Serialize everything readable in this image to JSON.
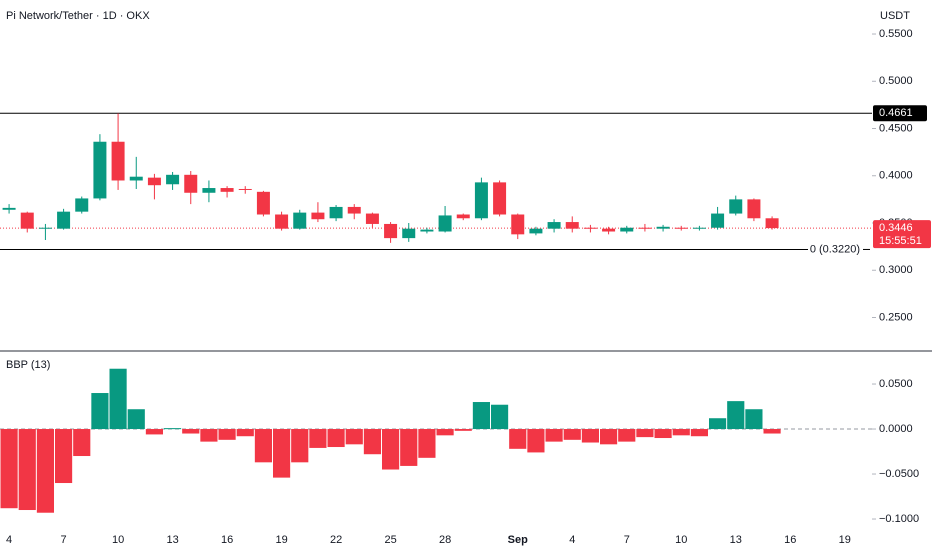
{
  "chart_data": [
    {
      "type": "candlestick",
      "title": "Pi Network/Tether · 1D · OKX",
      "y_label": "USDT",
      "categories": [
        "4",
        null,
        null,
        "7",
        null,
        null,
        "10",
        null,
        null,
        "13",
        null,
        null,
        "16",
        null,
        null,
        "19",
        null,
        null,
        "22",
        null,
        null,
        "25",
        null,
        null,
        "28",
        null,
        null,
        null,
        "Sep",
        null,
        null,
        "4",
        null,
        null,
        "7",
        null,
        null,
        "10",
        null,
        null,
        "13",
        null,
        null,
        "16",
        null,
        null,
        "19",
        null
      ],
      "open": [
        0.364,
        0.361,
        0.344,
        0.344,
        0.362,
        0.376,
        0.436,
        0.395,
        0.398,
        0.391,
        0.401,
        0.382,
        0.387,
        0.386,
        0.383,
        0.359,
        0.344,
        0.361,
        0.355,
        0.367,
        0.36,
        0.349,
        0.334,
        0.341,
        0.341,
        0.359,
        0.355,
        0.393,
        0.359,
        0.339,
        0.344,
        0.351,
        0.345,
        0.344,
        0.341,
        0.345,
        0.344,
        0.345,
        0.344,
        0.345,
        0.36,
        0.375,
        0.355,
        null,
        null,
        null,
        null,
        null
      ],
      "high": [
        0.37,
        0.362,
        0.349,
        0.365,
        0.378,
        0.444,
        0.466,
        0.42,
        0.402,
        0.404,
        0.405,
        0.395,
        0.389,
        0.389,
        0.384,
        0.362,
        0.364,
        0.372,
        0.369,
        0.37,
        0.361,
        0.351,
        0.35,
        0.345,
        0.368,
        0.36,
        0.398,
        0.395,
        0.36,
        0.346,
        0.354,
        0.357,
        0.348,
        0.346,
        0.347,
        0.349,
        0.348,
        0.347,
        0.347,
        0.367,
        0.379,
        0.376,
        0.357,
        null,
        null,
        null,
        null,
        null
      ],
      "low": [
        0.36,
        0.34,
        0.332,
        0.343,
        0.36,
        0.374,
        0.385,
        0.386,
        0.375,
        0.385,
        0.37,
        0.372,
        0.377,
        0.381,
        0.357,
        0.342,
        0.343,
        0.351,
        0.352,
        0.354,
        0.345,
        0.329,
        0.33,
        0.339,
        0.34,
        0.353,
        0.353,
        0.357,
        0.333,
        0.337,
        0.34,
        0.34,
        0.34,
        0.338,
        0.339,
        0.341,
        0.341,
        0.342,
        0.342,
        0.343,
        0.358,
        0.352,
        0.343,
        null,
        null,
        null,
        null,
        null
      ],
      "close": [
        0.366,
        0.344,
        0.345,
        0.362,
        0.376,
        0.436,
        0.395,
        0.399,
        0.39,
        0.401,
        0.382,
        0.387,
        0.383,
        0.385,
        0.359,
        0.344,
        0.361,
        0.354,
        0.367,
        0.36,
        0.349,
        0.334,
        0.344,
        0.343,
        0.358,
        0.355,
        0.393,
        0.359,
        0.338,
        0.344,
        0.351,
        0.344,
        0.344,
        0.341,
        0.345,
        0.344,
        0.346,
        0.344,
        0.345,
        0.36,
        0.375,
        0.355,
        0.3446,
        null,
        null,
        null,
        null,
        null
      ],
      "up_color": "#089981",
      "down_color": "#f23645",
      "ylim": [
        0.2156,
        0.586
      ],
      "yticks": [
        {
          "value": 0.55,
          "label": "0.5500"
        },
        {
          "value": 0.5,
          "label": "0.5000"
        },
        {
          "value": 0.45,
          "label": "0.4500"
        },
        {
          "value": 0.4,
          "label": "0.4000"
        },
        {
          "value": 0.35,
          "label": "0.3500"
        },
        {
          "value": 0.3,
          "label": "0.3000"
        },
        {
          "value": 0.25,
          "label": "0.2500"
        }
      ],
      "hlines": [
        {
          "value": 0.4661,
          "label": "0.4661"
        },
        {
          "value": 0.322,
          "label": "0 (0.3220)"
        }
      ],
      "last_price": {
        "value": 0.3446,
        "label": "0.3446",
        "countdown": "15:55:51"
      }
    },
    {
      "type": "bar",
      "title": "BBP (13)",
      "up_color": "#089981",
      "down_color": "#f23645",
      "values": [
        -0.088,
        -0.09,
        -0.093,
        -0.06,
        -0.03,
        0.04,
        0.067,
        0.022,
        -0.006,
        0.001,
        -0.005,
        -0.014,
        -0.012,
        -0.008,
        -0.037,
        -0.054,
        -0.037,
        -0.021,
        -0.02,
        -0.017,
        -0.028,
        -0.045,
        -0.041,
        -0.032,
        -0.007,
        -0.002,
        0.03,
        0.027,
        -0.022,
        -0.026,
        -0.014,
        -0.012,
        -0.015,
        -0.017,
        -0.014,
        -0.009,
        -0.01,
        -0.007,
        -0.008,
        0.012,
        0.031,
        0.022,
        -0.005,
        null,
        null,
        null,
        null,
        null
      ],
      "ylim": [
        -0.1122,
        0.0867
      ],
      "yticks": [
        {
          "value": 0.05,
          "label": "0.0500"
        },
        {
          "value": 0,
          "label": "0.0000"
        },
        {
          "value": -0.05,
          "label": "−0.0500"
        },
        {
          "value": -0.1,
          "label": "−0.1000"
        }
      ]
    }
  ]
}
